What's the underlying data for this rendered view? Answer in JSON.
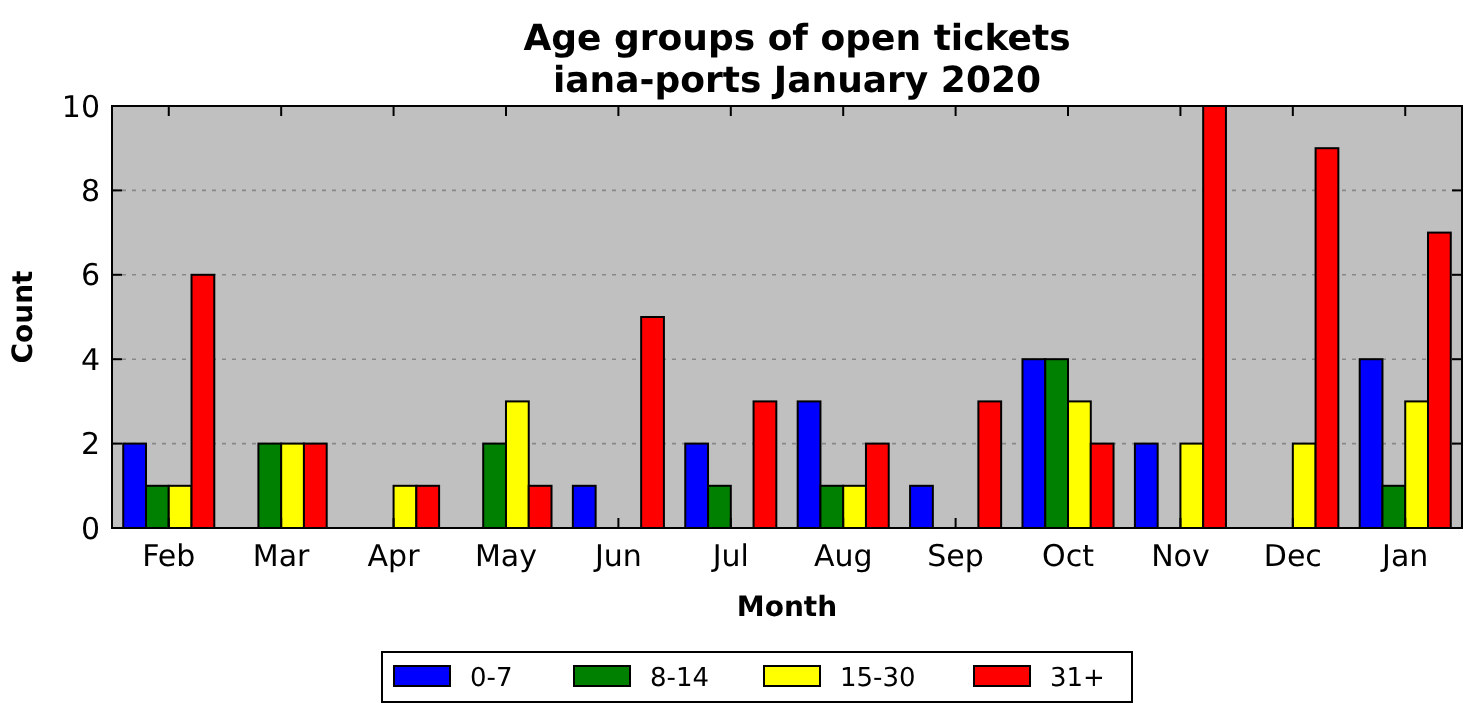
{
  "chart_data": {
    "type": "bar",
    "title": "Age groups of open tickets\niana-ports January 2020",
    "xlabel": "Month",
    "ylabel": "Count",
    "categories": [
      "Feb",
      "Mar",
      "Apr",
      "May",
      "Jun",
      "Jul",
      "Aug",
      "Sep",
      "Oct",
      "Nov",
      "Dec",
      "Jan"
    ],
    "series": [
      {
        "name": "0-7",
        "color": "#0000ff",
        "values": [
          2,
          0,
          0,
          0,
          1,
          2,
          3,
          1,
          4,
          2,
          0,
          4
        ]
      },
      {
        "name": "8-14",
        "color": "#008000",
        "values": [
          1,
          2,
          0,
          2,
          0,
          1,
          1,
          0,
          4,
          0,
          0,
          1
        ]
      },
      {
        "name": "15-30",
        "color": "#ffff00",
        "values": [
          1,
          2,
          1,
          3,
          0,
          0,
          1,
          0,
          3,
          2,
          2,
          3
        ]
      },
      {
        "name": "31+",
        "color": "#ff0000",
        "values": [
          6,
          2,
          1,
          1,
          5,
          3,
          2,
          3,
          2,
          10,
          9,
          7
        ]
      }
    ],
    "ylim": [
      0,
      10
    ],
    "yticks": [
      0,
      2,
      4,
      6,
      8,
      10
    ],
    "grid": "y",
    "legend": "bottom"
  }
}
